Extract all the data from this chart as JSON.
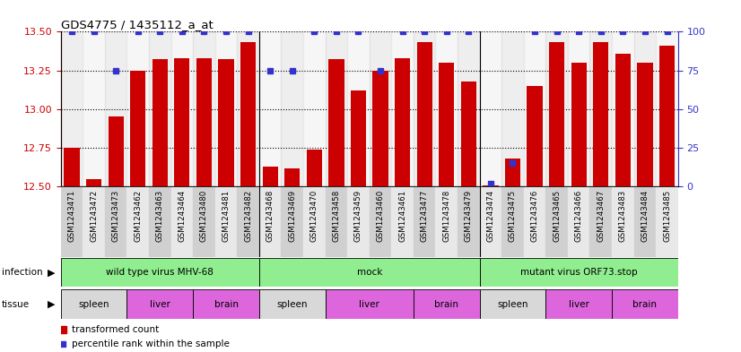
{
  "title": "GDS4775 / 1435112_a_at",
  "samples": [
    "GSM1243471",
    "GSM1243472",
    "GSM1243473",
    "GSM1243462",
    "GSM1243463",
    "GSM1243464",
    "GSM1243480",
    "GSM1243481",
    "GSM1243482",
    "GSM1243468",
    "GSM1243469",
    "GSM1243470",
    "GSM1243458",
    "GSM1243459",
    "GSM1243460",
    "GSM1243461",
    "GSM1243477",
    "GSM1243478",
    "GSM1243479",
    "GSM1243474",
    "GSM1243475",
    "GSM1243476",
    "GSM1243465",
    "GSM1243466",
    "GSM1243467",
    "GSM1243483",
    "GSM1243484",
    "GSM1243485"
  ],
  "red_values": [
    12.75,
    12.55,
    12.95,
    13.25,
    13.32,
    13.33,
    13.33,
    13.32,
    13.43,
    12.63,
    12.62,
    12.74,
    13.32,
    13.12,
    13.25,
    13.33,
    13.43,
    13.3,
    13.18,
    12.505,
    12.68,
    13.15,
    13.43,
    13.3,
    13.43,
    13.36,
    13.3,
    13.41
  ],
  "blue_values": [
    100,
    100,
    75,
    100,
    100,
    100,
    100,
    100,
    100,
    75,
    75,
    100,
    100,
    100,
    75,
    100,
    100,
    100,
    100,
    2,
    15,
    100,
    100,
    100,
    100,
    100,
    100,
    100
  ],
  "ylim_left": [
    12.5,
    13.5
  ],
  "ylim_right": [
    0,
    100
  ],
  "yticks_left": [
    12.5,
    12.75,
    13.0,
    13.25,
    13.5
  ],
  "yticks_right": [
    0,
    25,
    50,
    75,
    100
  ],
  "bar_color": "#cc0000",
  "blue_color": "#3333cc",
  "infection_groups": [
    {
      "label": "wild type virus MHV-68",
      "start": 0,
      "end": 9,
      "color": "#90ee90"
    },
    {
      "label": "mock",
      "start": 9,
      "end": 19,
      "color": "#90ee90"
    },
    {
      "label": "mutant virus ORF73.stop",
      "start": 19,
      "end": 28,
      "color": "#90ee90"
    }
  ],
  "tissue_groups": [
    {
      "label": "spleen",
      "start": 0,
      "end": 3,
      "color": "#d8d8d8"
    },
    {
      "label": "liver",
      "start": 3,
      "end": 6,
      "color": "#dd66dd"
    },
    {
      "label": "brain",
      "start": 6,
      "end": 9,
      "color": "#dd66dd"
    },
    {
      "label": "spleen",
      "start": 9,
      "end": 12,
      "color": "#d8d8d8"
    },
    {
      "label": "liver",
      "start": 12,
      "end": 16,
      "color": "#dd66dd"
    },
    {
      "label": "brain",
      "start": 16,
      "end": 19,
      "color": "#dd66dd"
    },
    {
      "label": "spleen",
      "start": 19,
      "end": 22,
      "color": "#d8d8d8"
    },
    {
      "label": "liver",
      "start": 22,
      "end": 25,
      "color": "#dd66dd"
    },
    {
      "label": "brain",
      "start": 25,
      "end": 28,
      "color": "#dd66dd"
    }
  ],
  "col_even_color": "#d0d0d0",
  "col_odd_color": "#e8e8e8",
  "group_dividers": [
    9,
    19
  ],
  "label_infection": "infection",
  "label_tissue": "tissue",
  "legend_items": [
    {
      "label": "transformed count",
      "color": "#cc0000",
      "marker": "s"
    },
    {
      "label": "percentile rank within the sample",
      "color": "#3333cc",
      "marker": "s"
    }
  ]
}
